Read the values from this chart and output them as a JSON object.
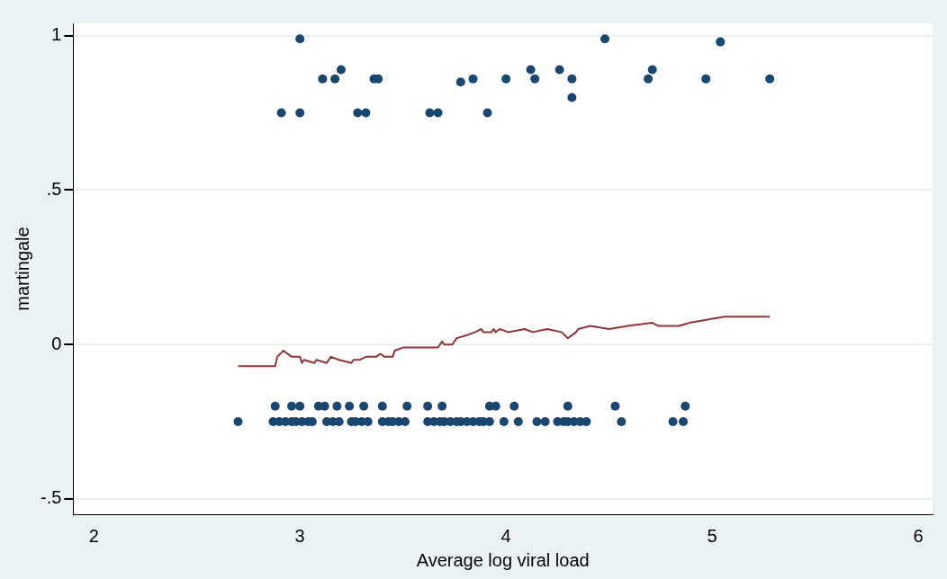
{
  "chart_data": {
    "type": "scatter",
    "xlabel": "Average log viral load",
    "ylabel": "martingale",
    "xlim": [
      1.9,
      6.07
    ],
    "xticks": [
      2,
      3,
      4,
      5,
      6
    ],
    "ylim": [
      -0.55,
      1.04
    ],
    "yticks": [
      {
        "value": -0.5,
        "label": "-.5"
      },
      {
        "value": 0,
        "label": "0"
      },
      {
        "value": 0.5,
        "label": ".5"
      },
      {
        "value": 1,
        "label": "1"
      }
    ],
    "grid": "y",
    "legend": false,
    "marker": "circle",
    "series": [
      {
        "color": "#1a476f",
        "x": [
          2.91,
          3.0,
          3.0,
          3.11,
          3.17,
          3.2,
          3.28,
          3.32,
          3.36,
          3.38,
          3.63,
          3.67,
          3.78,
          3.84,
          3.91,
          4.0,
          4.12,
          4.14,
          4.26,
          4.32,
          4.32,
          4.48,
          4.69,
          4.71,
          4.97,
          5.04,
          5.28
        ],
        "values": [
          0.75,
          0.99,
          0.75,
          0.86,
          0.86,
          0.89,
          0.75,
          0.75,
          0.86,
          0.86,
          0.75,
          0.75,
          0.85,
          0.86,
          0.75,
          0.86,
          0.89,
          0.86,
          0.89,
          0.86,
          0.8,
          0.99,
          0.86,
          0.89,
          0.86,
          0.98,
          0.86
        ]
      },
      {
        "color": "#1a476f",
        "x": [
          2.88,
          2.96,
          3.0,
          3.09,
          3.12,
          3.18,
          3.24,
          3.31,
          3.4,
          3.52,
          3.62,
          3.69,
          3.92,
          3.95,
          4.04,
          4.3,
          4.53,
          4.87
        ],
        "values": [
          -0.2,
          -0.2,
          -0.2,
          -0.2,
          -0.2,
          -0.2,
          -0.2,
          -0.2,
          -0.2,
          -0.2,
          -0.2,
          -0.2,
          -0.2,
          -0.2,
          -0.2,
          -0.2,
          -0.2,
          -0.2
        ]
      },
      {
        "color": "#1a476f",
        "x": [
          2.7,
          2.87,
          2.9,
          2.93,
          2.96,
          2.98,
          3.01,
          3.04,
          3.06,
          3.13,
          3.16,
          3.19,
          3.25,
          3.27,
          3.3,
          3.33,
          3.4,
          3.43,
          3.45,
          3.48,
          3.51,
          3.62,
          3.65,
          3.68,
          3.7,
          3.73,
          3.76,
          3.78,
          3.81,
          3.84,
          3.87,
          3.89,
          3.92,
          3.99,
          4.06,
          4.15,
          4.19,
          4.25,
          4.28,
          4.3,
          4.33,
          4.36,
          4.39,
          4.56,
          4.81,
          4.86
        ],
        "values": [
          -0.25,
          -0.25,
          -0.25,
          -0.25,
          -0.25,
          -0.25,
          -0.25,
          -0.25,
          -0.25,
          -0.25,
          -0.25,
          -0.25,
          -0.25,
          -0.25,
          -0.25,
          -0.25,
          -0.25,
          -0.25,
          -0.25,
          -0.25,
          -0.25,
          -0.25,
          -0.25,
          -0.25,
          -0.25,
          -0.25,
          -0.25,
          -0.25,
          -0.25,
          -0.25,
          -0.25,
          -0.25,
          -0.25,
          -0.25,
          -0.25,
          -0.25,
          -0.25,
          -0.25,
          -0.25,
          -0.25,
          -0.25,
          -0.25,
          -0.25,
          -0.25,
          -0.25,
          -0.25
        ]
      },
      {
        "type": "line",
        "color": "#90353b",
        "marker": "none",
        "x": [
          2.7,
          2.88,
          2.89,
          2.92,
          2.96,
          3.0,
          3.01,
          3.02,
          3.07,
          3.08,
          3.13,
          3.15,
          3.19,
          3.25,
          3.26,
          3.29,
          3.32,
          3.37,
          3.39,
          3.41,
          3.45,
          3.46,
          3.5,
          3.65,
          3.67,
          3.69,
          3.7,
          3.74,
          3.76,
          3.81,
          3.85,
          3.88,
          3.89,
          3.93,
          3.94,
          3.95,
          3.97,
          4.01,
          4.09,
          4.13,
          4.2,
          4.27,
          4.3,
          4.32,
          4.34,
          4.35,
          4.41,
          4.5,
          4.59,
          4.71,
          4.74,
          4.84,
          4.89,
          5.06,
          5.28
        ],
        "values": [
          -0.07,
          -0.07,
          -0.04,
          -0.02,
          -0.04,
          -0.04,
          -0.06,
          -0.05,
          -0.06,
          -0.05,
          -0.06,
          -0.04,
          -0.05,
          -0.06,
          -0.05,
          -0.05,
          -0.04,
          -0.04,
          -0.03,
          -0.04,
          -0.04,
          -0.02,
          -0.01,
          -0.01,
          -0.01,
          0.01,
          0,
          0,
          0.02,
          0.03,
          0.04,
          0.05,
          0.04,
          0.04,
          0.05,
          0.04,
          0.05,
          0.04,
          0.05,
          0.04,
          0.05,
          0.04,
          0.02,
          0.03,
          0.04,
          0.05,
          0.06,
          0.05,
          0.06,
          0.07,
          0.06,
          0.06,
          0.07,
          0.09,
          0.09
        ]
      }
    ]
  }
}
